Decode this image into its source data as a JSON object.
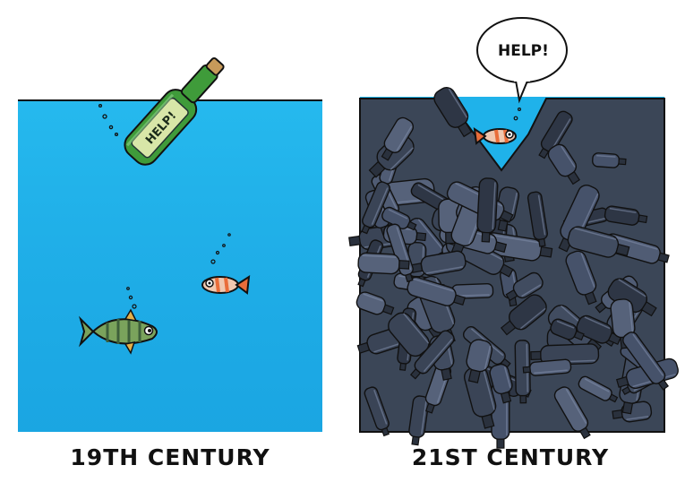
{
  "panels": [
    {
      "id": "past",
      "caption": "19TH CENTURY",
      "bottle_label": "HELP!",
      "colors": {
        "water": "#1fb2ea",
        "water_deep": "#169fdf",
        "bottle": "#3f9b3a"
      }
    },
    {
      "id": "present",
      "caption": "21ST CENTURY",
      "speech": "HELP!",
      "colors": {
        "water": "#1fb2ea",
        "plastic": "#3b4657",
        "plastic_dark": "#262d38"
      }
    }
  ]
}
